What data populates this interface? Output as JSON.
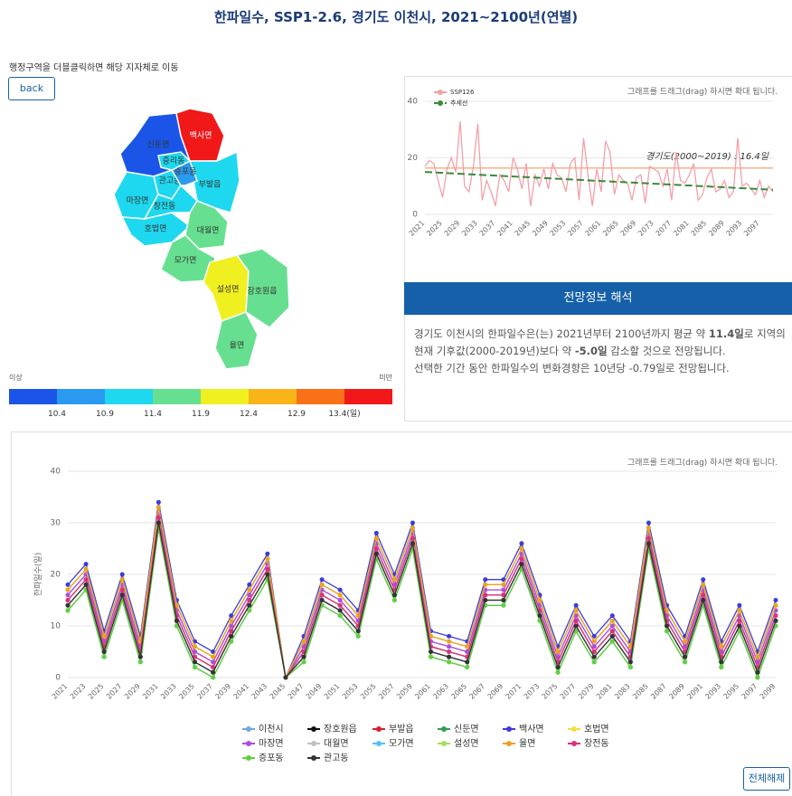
{
  "header": {
    "title": "한파일수, SSP1-2.6, 경기도 이천시, 2021~2100년(연별)"
  },
  "map": {
    "hint": "행정구역을 더블클릭하면 해당 지자체로 이동",
    "back": "back",
    "regions": [
      {
        "label": "신둔면",
        "color": "#1a55e8"
      },
      {
        "label": "백사면",
        "color": "#f01818"
      },
      {
        "label": "부발읍",
        "color": "#1ed8f0"
      },
      {
        "label": "마장면",
        "color": "#1ed8f0"
      },
      {
        "label": "호법면",
        "color": "#1ed8f0"
      },
      {
        "label": "관고동",
        "color": "#1ed8f0"
      },
      {
        "label": "증포동",
        "color": "#2a9af0"
      },
      {
        "label": "중리동",
        "color": "#1ed8f0"
      },
      {
        "label": "창전동",
        "color": "#1ed8f0"
      },
      {
        "label": "대월면",
        "color": "#66e090"
      },
      {
        "label": "모가면",
        "color": "#66e090"
      },
      {
        "label": "설성면",
        "color": "#f0f020"
      },
      {
        "label": "장호원읍",
        "color": "#66e090"
      },
      {
        "label": "율면",
        "color": "#66e090"
      }
    ],
    "legend": {
      "low": "이상",
      "high": "미만",
      "colors": [
        "#1a55e8",
        "#2a9af0",
        "#1ed8f0",
        "#66e090",
        "#f0f020",
        "#f8b418",
        "#f87018",
        "#f01818"
      ],
      "labels": [
        "10.4",
        "10.9",
        "11.4",
        "11.9",
        "12.4",
        "12.9",
        "13.4(일)"
      ]
    }
  },
  "chart_data": [
    {
      "type": "line",
      "hint": "그래프를 드래그(drag) 하시면 확대 됩니다.",
      "xlim": [
        2021,
        2100
      ],
      "xticks": [
        2021,
        2025,
        2029,
        2033,
        2037,
        2041,
        2045,
        2049,
        2053,
        2057,
        2061,
        2065,
        2069,
        2073,
        2077,
        2081,
        2085,
        2089,
        2093,
        2097
      ],
      "ylim": [
        0,
        40
      ],
      "yticks": [
        0,
        20,
        40
      ],
      "grid": true,
      "reference": {
        "label": "경기도(2000~2019) : 16.4일",
        "value": 16.4,
        "color": "#f6b08a"
      },
      "series": [
        {
          "name": "SSP126",
          "color": "#f4a0a8",
          "x": [
            2021,
            2022,
            2023,
            2024,
            2025,
            2026,
            2027,
            2028,
            2029,
            2030,
            2031,
            2032,
            2033,
            2034,
            2035,
            2036,
            2037,
            2038,
            2039,
            2040,
            2041,
            2042,
            2043,
            2044,
            2045,
            2046,
            2047,
            2048,
            2049,
            2050,
            2051,
            2052,
            2053,
            2054,
            2055,
            2056,
            2057,
            2058,
            2059,
            2060,
            2061,
            2062,
            2063,
            2064,
            2065,
            2066,
            2067,
            2068,
            2069,
            2070,
            2071,
            2072,
            2073,
            2074,
            2075,
            2076,
            2077,
            2078,
            2079,
            2080,
            2081,
            2082,
            2083,
            2084,
            2085,
            2086,
            2087,
            2088,
            2089,
            2090,
            2091,
            2092,
            2093,
            2094,
            2095,
            2096,
            2097,
            2098,
            2099,
            2100
          ],
          "values": [
            17,
            19,
            18,
            12,
            6,
            16,
            20,
            15,
            33,
            10,
            8,
            17,
            32,
            5,
            12,
            8,
            3,
            14,
            12,
            8,
            20,
            16,
            9,
            18,
            3,
            14,
            10,
            16,
            9,
            18,
            14,
            13,
            8,
            18,
            20,
            5,
            27,
            14,
            3,
            16,
            8,
            26,
            22,
            7,
            14,
            12,
            11,
            5,
            13,
            14,
            4,
            17,
            16,
            15,
            10,
            16,
            5,
            22,
            12,
            11,
            14,
            18,
            5,
            7,
            13,
            16,
            8,
            9,
            12,
            6,
            8,
            27,
            10,
            11,
            9,
            7,
            12,
            6,
            10,
            8
          ]
        },
        {
          "name": "추세선",
          "color": "#3a8a3a",
          "dashed": true,
          "x": [
            2021,
            2100
          ],
          "values": [
            15,
            8.7
          ]
        }
      ]
    },
    {
      "type": "line",
      "hint": "그래프를 드래그(drag) 하시면 확대 됩니다.",
      "ylabel": "한파일수(일)",
      "ylim": [
        0,
        40
      ],
      "yticks": [
        0,
        10,
        20,
        30,
        40
      ],
      "grid": true,
      "button": "전체해제",
      "categories": [
        2021,
        2023,
        2025,
        2027,
        2029,
        2031,
        2033,
        2035,
        2037,
        2039,
        2041,
        2043,
        2045,
        2047,
        2049,
        2051,
        2053,
        2055,
        2057,
        2059,
        2061,
        2063,
        2065,
        2067,
        2069,
        2071,
        2073,
        2075,
        2077,
        2079,
        2081,
        2083,
        2085,
        2087,
        2089,
        2091,
        2093,
        2095,
        2097,
        2099
      ],
      "series": [
        {
          "name": "이천시",
          "color": "#6fa8dc",
          "values": [
            16,
            20,
            7,
            18,
            6,
            32,
            13,
            5,
            3,
            10,
            16,
            22,
            0,
            6,
            17,
            15,
            11,
            26,
            18,
            28,
            7,
            6,
            5,
            17,
            17,
            24,
            14,
            4,
            12,
            6,
            10,
            5,
            28,
            12,
            6,
            17,
            5,
            12,
            3,
            13
          ]
        },
        {
          "name": "장호원읍",
          "color": "#111111",
          "values": [
            15,
            19,
            6,
            17,
            5,
            31,
            12,
            4,
            2,
            9,
            15,
            21,
            0,
            5,
            16,
            14,
            10,
            25,
            17,
            27,
            6,
            5,
            4,
            16,
            16,
            23,
            13,
            3,
            11,
            5,
            9,
            4,
            27,
            11,
            5,
            16,
            4,
            11,
            2,
            12
          ]
        },
        {
          "name": "부발읍",
          "color": "#d8202a",
          "values": [
            14,
            18,
            5,
            16,
            4,
            30,
            11,
            3,
            1,
            8,
            14,
            20,
            0,
            4,
            15,
            13,
            9,
            24,
            16,
            26,
            5,
            4,
            3,
            15,
            15,
            22,
            12,
            2,
            10,
            4,
            8,
            3,
            26,
            10,
            4,
            15,
            3,
            10,
            1,
            11
          ]
        },
        {
          "name": "신둔면",
          "color": "#2e9e4f",
          "values": [
            13,
            17,
            4,
            15,
            3,
            29,
            10,
            2,
            0,
            7,
            13,
            19,
            0,
            3,
            14,
            12,
            8,
            23,
            15,
            25,
            4,
            3,
            2,
            14,
            14,
            21,
            11,
            1,
            9,
            3,
            7,
            2,
            25,
            9,
            3,
            14,
            2,
            9,
            0,
            10
          ]
        },
        {
          "name": "백사면",
          "color": "#3b3bdb",
          "values": [
            18,
            22,
            9,
            20,
            8,
            34,
            15,
            7,
            5,
            12,
            18,
            24,
            0,
            8,
            19,
            17,
            13,
            28,
            20,
            30,
            9,
            8,
            7,
            19,
            19,
            26,
            16,
            6,
            14,
            8,
            12,
            7,
            30,
            14,
            8,
            19,
            7,
            14,
            5,
            15
          ]
        },
        {
          "name": "호법면",
          "color": "#f0e040",
          "values": [
            17,
            21,
            8,
            19,
            7,
            33,
            14,
            6,
            4,
            11,
            17,
            23,
            0,
            7,
            18,
            16,
            12,
            27,
            19,
            29,
            8,
            7,
            6,
            18,
            18,
            25,
            15,
            5,
            13,
            7,
            11,
            6,
            29,
            13,
            7,
            18,
            6,
            13,
            4,
            14
          ]
        },
        {
          "name": "마장면",
          "color": "#b04ae0",
          "values": [
            16,
            20,
            7,
            18,
            6,
            32,
            13,
            5,
            3,
            10,
            16,
            22,
            0,
            6,
            17,
            15,
            11,
            26,
            18,
            28,
            7,
            6,
            5,
            17,
            17,
            24,
            14,
            4,
            12,
            6,
            10,
            5,
            28,
            12,
            6,
            17,
            5,
            12,
            3,
            13
          ]
        },
        {
          "name": "대월면",
          "color": "#c0c0c0",
          "values": [
            15,
            19,
            6,
            17,
            5,
            31,
            12,
            4,
            2,
            9,
            15,
            21,
            0,
            5,
            16,
            14,
            10,
            25,
            17,
            27,
            6,
            5,
            4,
            16,
            16,
            23,
            13,
            3,
            11,
            5,
            9,
            4,
            27,
            11,
            5,
            16,
            4,
            11,
            2,
            12
          ]
        },
        {
          "name": "모가면",
          "color": "#4fc3f7",
          "values": [
            14,
            18,
            5,
            16,
            4,
            30,
            11,
            3,
            1,
            8,
            14,
            20,
            0,
            4,
            15,
            13,
            9,
            24,
            16,
            26,
            5,
            4,
            3,
            15,
            15,
            22,
            12,
            2,
            10,
            4,
            8,
            3,
            26,
            10,
            4,
            15,
            3,
            10,
            1,
            11
          ]
        },
        {
          "name": "설성면",
          "color": "#a0e060",
          "values": [
            17,
            21,
            8,
            19,
            7,
            33,
            14,
            6,
            4,
            11,
            17,
            23,
            0,
            7,
            18,
            16,
            12,
            27,
            19,
            29,
            8,
            7,
            6,
            18,
            18,
            25,
            15,
            5,
            13,
            7,
            11,
            6,
            29,
            13,
            7,
            18,
            6,
            13,
            4,
            14
          ]
        },
        {
          "name": "율면",
          "color": "#f0a020",
          "values": [
            17,
            21,
            8,
            19,
            7,
            33,
            14,
            6,
            4,
            11,
            17,
            23,
            0,
            7,
            18,
            16,
            12,
            27,
            19,
            29,
            8,
            7,
            6,
            18,
            18,
            25,
            15,
            5,
            13,
            7,
            11,
            6,
            29,
            13,
            7,
            18,
            6,
            13,
            4,
            14
          ]
        },
        {
          "name": "창전동",
          "color": "#e0307a",
          "values": [
            15,
            19,
            6,
            17,
            5,
            31,
            12,
            4,
            2,
            9,
            15,
            21,
            0,
            5,
            16,
            14,
            10,
            25,
            17,
            27,
            6,
            5,
            4,
            16,
            16,
            23,
            13,
            3,
            11,
            5,
            9,
            4,
            27,
            11,
            5,
            16,
            4,
            11,
            2,
            12
          ]
        },
        {
          "name": "증포동",
          "color": "#60d040",
          "values": [
            13,
            17,
            4,
            15,
            3,
            29,
            10,
            2,
            0,
            7,
            13,
            19,
            0,
            3,
            14,
            12,
            8,
            23,
            15,
            25,
            4,
            3,
            2,
            14,
            14,
            21,
            11,
            1,
            9,
            3,
            7,
            2,
            25,
            9,
            3,
            14,
            2,
            9,
            0,
            10
          ]
        },
        {
          "name": "관고동",
          "color": "#333333",
          "values": [
            14,
            18,
            5,
            16,
            4,
            30,
            11,
            3,
            1,
            8,
            14,
            20,
            0,
            4,
            15,
            13,
            9,
            24,
            16,
            26,
            5,
            4,
            3,
            15,
            15,
            22,
            12,
            2,
            10,
            4,
            8,
            3,
            26,
            10,
            4,
            15,
            3,
            10,
            1,
            11
          ]
        }
      ]
    }
  ],
  "interpretation": {
    "title": "전망정보 해석",
    "line1": [
      "경기도 이천시의 한파일수은(는) 2021년부터 2100년까지 평균 약 ",
      "11.4일",
      "로 지역의 현재 기후값(2000-2019년)보다 약 ",
      "-5.0일",
      " 감소할 것으로 전망됩니다."
    ],
    "line2": "선택한 기간 동안 한파일수의 변화경향은 10년당 -0.79일로 전망됩니다."
  }
}
